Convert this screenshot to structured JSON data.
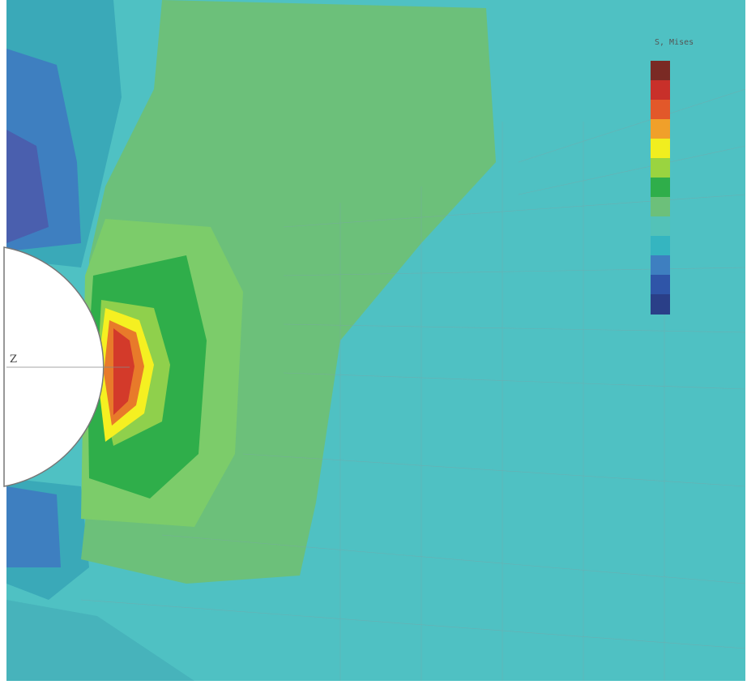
{
  "legend": {
    "title": "S, Mises"
  },
  "axis": {
    "label": "Z"
  }
}
